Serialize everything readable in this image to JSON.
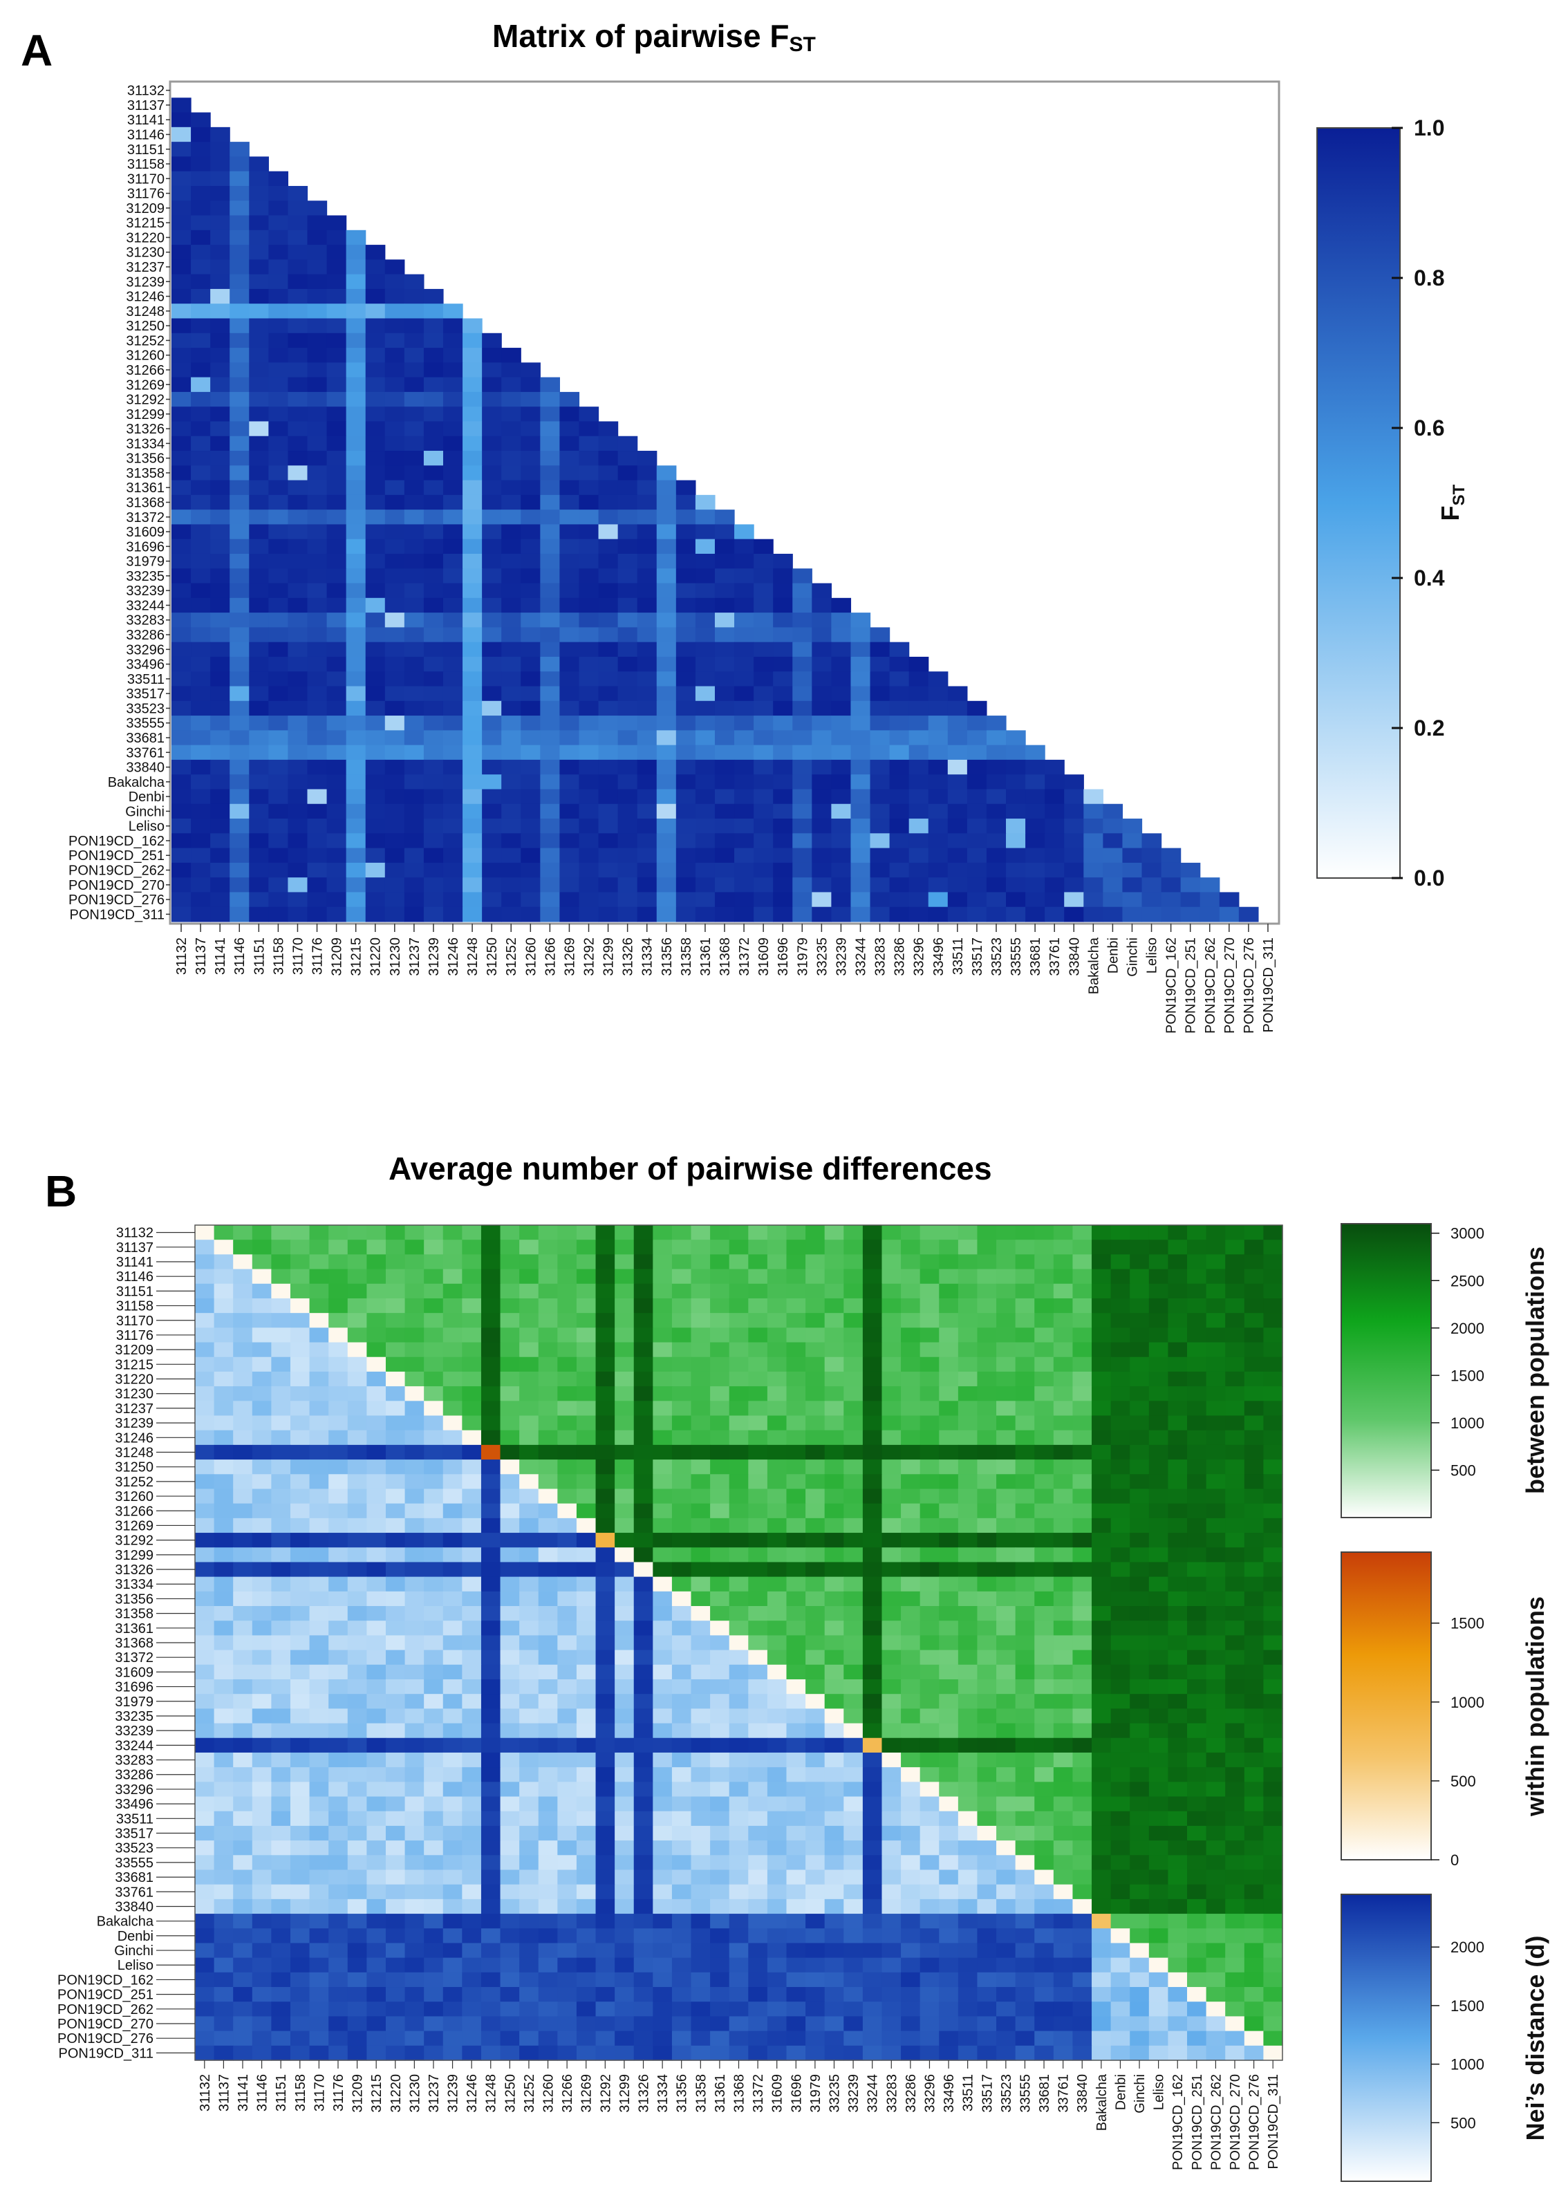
{
  "chart_data": [
    {
      "panel": "A",
      "type": "heatmap",
      "title_main": "Matrix of pairwise F",
      "title_sub": "ST",
      "triangle": "lower",
      "categories": [
        "31132",
        "31137",
        "31141",
        "31146",
        "31151",
        "31158",
        "31170",
        "31176",
        "31209",
        "31215",
        "31220",
        "31230",
        "31237",
        "31239",
        "31246",
        "31248",
        "31250",
        "31252",
        "31260",
        "31266",
        "31269",
        "31292",
        "31299",
        "31326",
        "31334",
        "31356",
        "31358",
        "31361",
        "31368",
        "31372",
        "31609",
        "31696",
        "31979",
        "33235",
        "33239",
        "33244",
        "33283",
        "33286",
        "33296",
        "33496",
        "33511",
        "33517",
        "33523",
        "33555",
        "33681",
        "33761",
        "33840",
        "Bakalcha",
        "Denbi",
        "Ginchi",
        "Leliso",
        "PON19CD_162",
        "PON19CD_251",
        "PON19CD_262",
        "PON19CD_270",
        "PON19CD_276",
        "PON19CD_311"
      ],
      "low_rows": {
        "31248": 0.4,
        "31292": 0.75,
        "31372": 0.65,
        "33283": 0.7,
        "33286": 0.7,
        "33555": 0.65,
        "33681": 0.6,
        "33761": 0.55
      },
      "low_cols": {
        "31146": 0.65,
        "31215": 0.5,
        "31248": 0.4,
        "31266": 0.65,
        "31356": 0.55,
        "31979": 0.7,
        "33244": 0.6,
        "Bakalcha": 0.6
      },
      "base_value": 0.9,
      "colorbar": {
        "label_main": "F",
        "label_sub": "ST",
        "range": [
          0.0,
          1.0
        ],
        "ticks": [
          "0.0",
          "0.2",
          "0.4",
          "0.6",
          "0.8",
          "1.0"
        ],
        "colors": [
          "#ffffff",
          "#4aa3e8",
          "#0a1f96"
        ]
      }
    },
    {
      "panel": "B",
      "type": "heatmap",
      "title": "Average number of pairwise differences",
      "categories": [
        "31132",
        "31137",
        "31141",
        "31146",
        "31151",
        "31158",
        "31170",
        "31176",
        "31209",
        "31215",
        "31220",
        "31230",
        "31237",
        "31239",
        "31246",
        "31248",
        "31250",
        "31252",
        "31260",
        "31266",
        "31269",
        "31292",
        "31299",
        "31326",
        "31334",
        "31356",
        "31358",
        "31361",
        "31368",
        "31372",
        "31609",
        "31696",
        "31979",
        "33235",
        "33239",
        "33244",
        "33283",
        "33286",
        "33296",
        "33496",
        "33511",
        "33517",
        "33523",
        "33555",
        "33681",
        "33761",
        "33840",
        "Bakalcha",
        "Denbi",
        "Ginchi",
        "Leliso",
        "PON19CD_162",
        "PON19CD_251",
        "PON19CD_262",
        "PON19CD_270",
        "PON19CD_276",
        "PON19CD_311"
      ],
      "upper_triangle": "between populations",
      "diagonal": "within populations",
      "lower_triangle": "Nei's distance (d)",
      "high_rows": [
        "31248",
        "31292",
        "31326",
        "33244"
      ],
      "high_cols": [
        "31248",
        "31292",
        "31326",
        "33244"
      ],
      "high_cluster": [
        "Bakalcha",
        "Denbi",
        "Ginchi",
        "Leliso",
        "PON19CD_162",
        "PON19CD_251",
        "PON19CD_262",
        "PON19CD_270",
        "PON19CD_276",
        "PON19CD_311"
      ],
      "diag_high": {
        "31248": 1800,
        "31292": 900,
        "33244": 800,
        "Bakalcha": 700
      },
      "colorbars": [
        {
          "label": "between populations",
          "range": [
            0,
            3100
          ],
          "ticks": [
            500,
            1000,
            1500,
            2000,
            2500,
            3000
          ],
          "colors": [
            "#ffffff",
            "#5fc76a",
            "#0fa51c",
            "#084d0e"
          ]
        },
        {
          "label": "within populations",
          "range": [
            0,
            1950
          ],
          "ticks": [
            0,
            500,
            1000,
            1500
          ],
          "colors": [
            "#ffffff",
            "#f5c46a",
            "#ed9a08",
            "#c83f08"
          ]
        },
        {
          "label": "Nei’s distance (d)",
          "range": [
            0,
            2450
          ],
          "ticks": [
            500,
            1000,
            1500,
            2000
          ],
          "colors": [
            "#ffffff",
            "#5aa8ea",
            "#0b2aa0"
          ]
        }
      ]
    }
  ]
}
